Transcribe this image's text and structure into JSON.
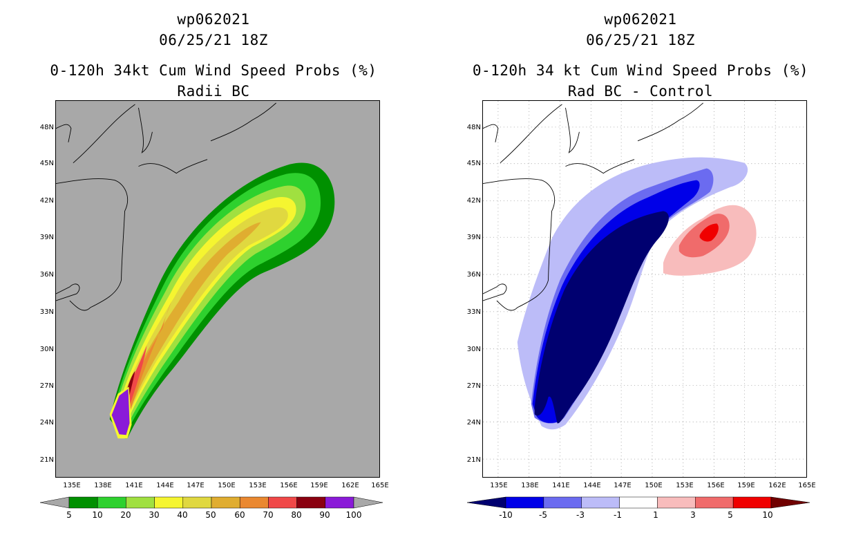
{
  "left_panel": {
    "storm_id": "wp062021",
    "datetime": "06/25/21 18Z",
    "title": "0-120h 34kt Cum Wind Speed Probs (%)",
    "subtitle": "Radii BC",
    "lat_labels": [
      "48N",
      "45N",
      "42N",
      "39N",
      "36N",
      "33N",
      "30N",
      "27N",
      "24N",
      "21N"
    ],
    "lon_labels": [
      "135E",
      "138E",
      "141E",
      "144E",
      "147E",
      "150E",
      "153E",
      "156E",
      "159E",
      "162E",
      "165E"
    ],
    "colorbar_labels": [
      "5",
      "10",
      "20",
      "30",
      "40",
      "50",
      "60",
      "70",
      "80",
      "90",
      "100"
    ],
    "colorbar_colors": [
      "#009000",
      "#2ed12e",
      "#a0e040",
      "#f5f530",
      "#e0d840",
      "#e0ad30",
      "#ea8830",
      "#f04848",
      "#8a0010",
      "#8a1ad8"
    ]
  },
  "right_panel": {
    "storm_id": "wp062021",
    "datetime": "06/25/21 18Z",
    "title": "0-120h 34 kt Cum Wind Speed Probs (%)",
    "subtitle": "Rad BC - Control",
    "lat_labels": [
      "48N",
      "45N",
      "42N",
      "39N",
      "36N",
      "33N",
      "30N",
      "27N",
      "24N",
      "21N"
    ],
    "lon_labels": [
      "135E",
      "138E",
      "141E",
      "144E",
      "147E",
      "150E",
      "153E",
      "156E",
      "159E",
      "162E",
      "165E"
    ],
    "colorbar_labels": [
      "-10",
      "-5",
      "-3",
      "-1",
      "1",
      "3",
      "5",
      "10"
    ],
    "colorbar_colors": [
      "#000070",
      "#0000e8",
      "#6b6bf0",
      "#bcbcf8",
      "#ffffff",
      "#f8bcbc",
      "#f06b6b",
      "#f00000",
      "#700000"
    ]
  }
}
